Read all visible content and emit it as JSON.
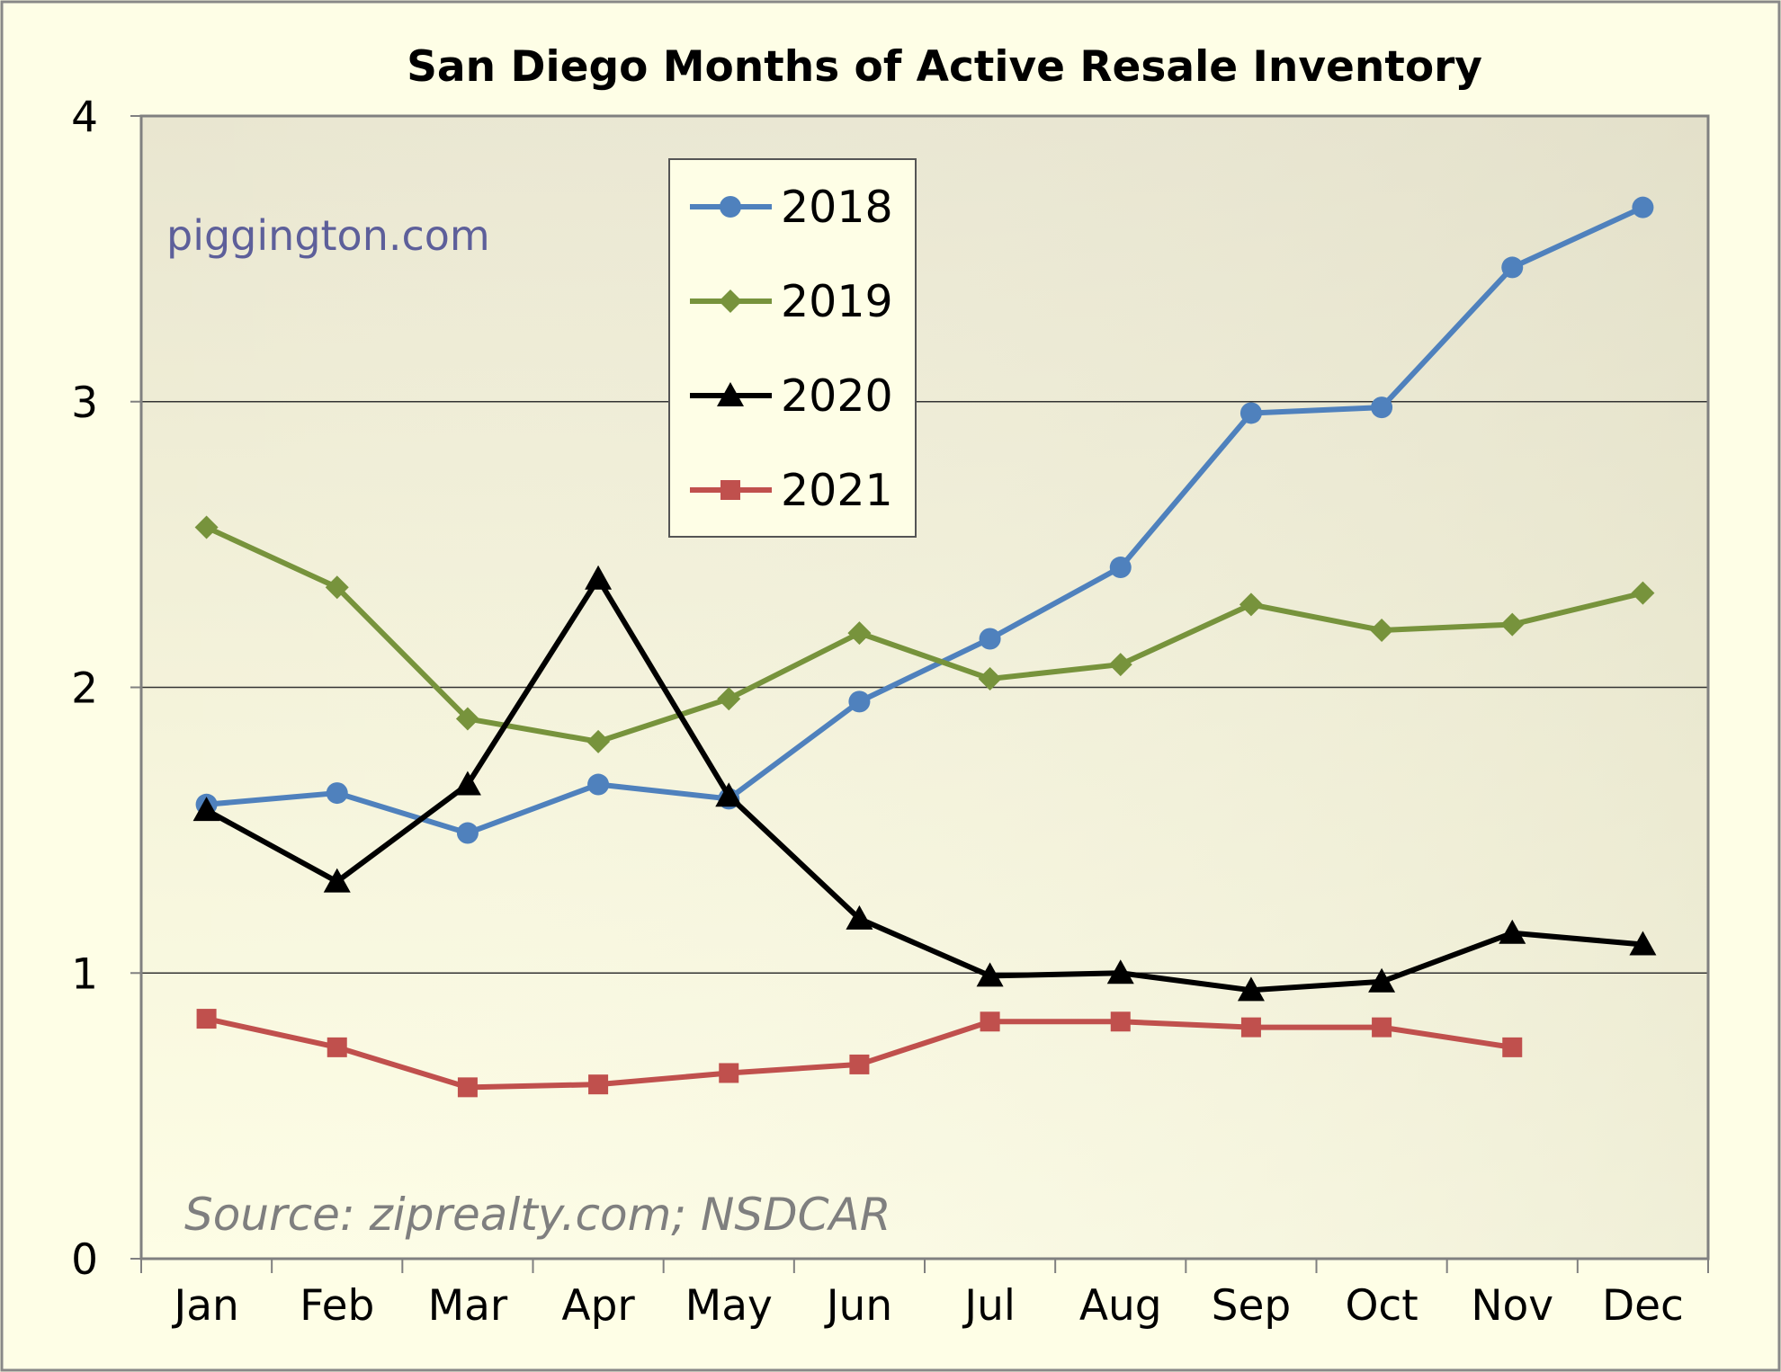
{
  "chart_data": {
    "type": "line",
    "title": "San Diego Months of Active Resale Inventory",
    "xlabel": "",
    "ylabel": "",
    "categories": [
      "Jan",
      "Feb",
      "Mar",
      "Apr",
      "May",
      "Jun",
      "Jul",
      "Aug",
      "Sep",
      "Oct",
      "Nov",
      "Dec"
    ],
    "ylim": [
      0,
      4
    ],
    "yticks": [
      "0",
      "1",
      "2",
      "3",
      "4"
    ],
    "grid": true,
    "legend_position": "top-center",
    "series": [
      {
        "name": "2018",
        "color": "#4f81bd",
        "marker": "circle",
        "values": [
          1.59,
          1.63,
          1.49,
          1.66,
          1.61,
          1.95,
          2.17,
          2.42,
          2.96,
          2.98,
          3.47,
          3.68
        ]
      },
      {
        "name": "2019",
        "color": "#77933c",
        "marker": "diamond",
        "values": [
          2.56,
          2.35,
          1.89,
          1.81,
          1.96,
          2.19,
          2.03,
          2.08,
          2.29,
          2.2,
          2.22,
          2.33
        ]
      },
      {
        "name": "2020",
        "color": "#000000",
        "marker": "triangle",
        "values": [
          1.57,
          1.32,
          1.66,
          2.38,
          1.62,
          1.19,
          0.99,
          1.0,
          0.94,
          0.97,
          1.14,
          1.1
        ]
      },
      {
        "name": "2021",
        "color": "#c0504d",
        "marker": "square",
        "values": [
          0.84,
          0.74,
          0.6,
          0.61,
          0.65,
          0.68,
          0.83,
          0.83,
          0.81,
          0.81,
          0.74,
          null
        ]
      }
    ],
    "annotations": {
      "watermark": "piggington.com",
      "watermark_color": "#5d5f9a",
      "source": "Source: ziprealty.com; NSDCAR",
      "source_color": "#7f7f7f"
    }
  }
}
